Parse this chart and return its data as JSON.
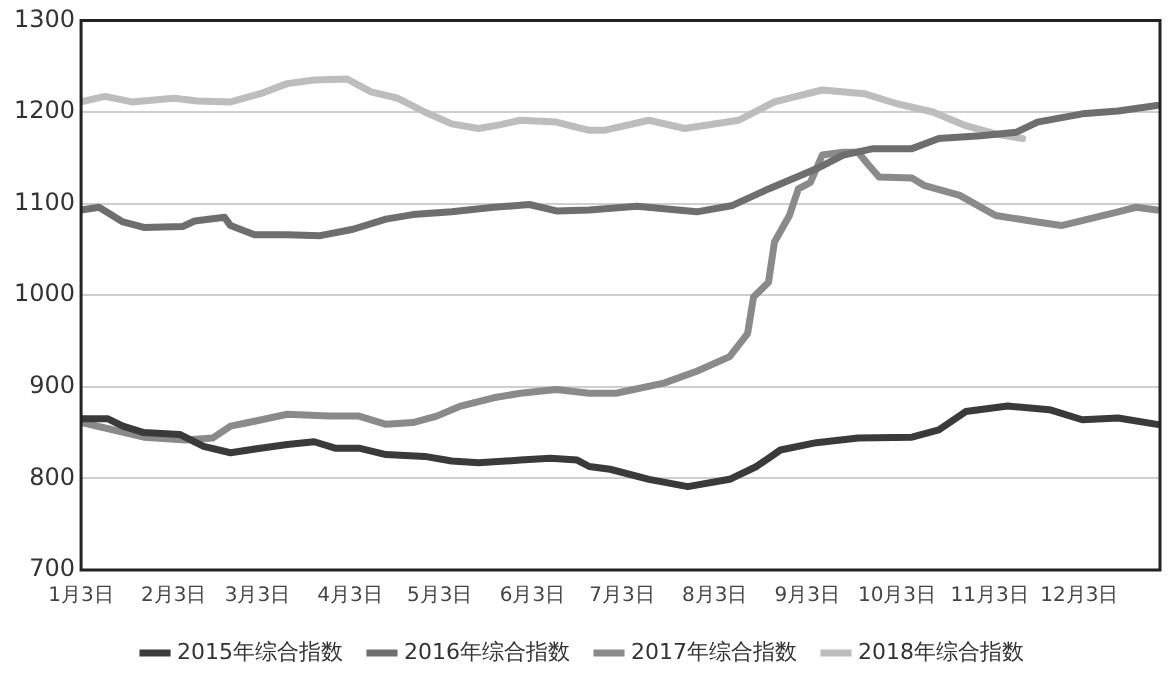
{
  "chart_data": {
    "type": "line",
    "xlim": [
      "--01-03",
      "--12-30"
    ],
    "ylim": [
      700,
      1300
    ],
    "xticks": [
      {
        "value": "--01-03",
        "label": "1月3日"
      },
      {
        "value": "--02-03",
        "label": "2月3日"
      },
      {
        "value": "--03-03",
        "label": "3月3日"
      },
      {
        "value": "--04-03",
        "label": "4月3日"
      },
      {
        "value": "--05-03",
        "label": "5月3日"
      },
      {
        "value": "--06-03",
        "label": "6月3日"
      },
      {
        "value": "--07-03",
        "label": "7月3日"
      },
      {
        "value": "--08-03",
        "label": "8月3日"
      },
      {
        "value": "--09-03",
        "label": "9月3日"
      },
      {
        "value": "--10-03",
        "label": "10月3日"
      },
      {
        "value": "--11-03",
        "label": "11月3日"
      },
      {
        "value": "--12-03",
        "label": "12月3日"
      }
    ],
    "yticks": [
      700,
      800,
      900,
      1000,
      1100,
      1200,
      1300
    ],
    "grid": "y",
    "legend": "bottom",
    "marker": "none",
    "line_style": "solid",
    "series": [
      {
        "name": "2015年综合指数",
        "color": "#3a3a3a",
        "x": [
          "--01-03",
          "--01-12",
          "--01-17",
          "--01-24",
          "--02-05",
          "--02-13",
          "--02-22",
          "--03-04",
          "--03-13",
          "--03-22",
          "--03-29",
          "--04-06",
          "--04-15",
          "--04-28",
          "--05-07",
          "--05-16",
          "--05-30",
          "--06-09",
          "--06-18",
          "--06-22",
          "--06-29",
          "--07-12",
          "--07-25",
          "--08-08",
          "--08-17",
          "--08-25",
          "--09-06",
          "--09-20",
          "--10-08",
          "--10-17",
          "--10-26",
          "--11-09",
          "--11-23",
          "--12-04",
          "--12-16",
          "--12-29"
        ],
        "values": [
          865,
          865,
          857,
          850,
          848,
          835,
          828,
          833,
          837,
          840,
          833,
          833,
          826,
          824,
          819,
          817,
          820,
          822,
          820,
          813,
          810,
          799,
          791,
          799,
          813,
          831,
          839,
          844,
          845,
          853,
          873,
          879,
          875,
          864,
          866,
          859
        ]
      },
      {
        "name": "2016年综合指数",
        "color": "#6e6e6e",
        "x": [
          "--01-03",
          "--01-09",
          "--01-17",
          "--01-24",
          "--02-06",
          "--02-10",
          "--02-20",
          "--02-22",
          "--03-02",
          "--03-13",
          "--03-24",
          "--04-04",
          "--04-15",
          "--04-24",
          "--05-07",
          "--05-21",
          "--06-02",
          "--06-11",
          "--06-22",
          "--07-08",
          "--07-28",
          "--08-09",
          "--08-21",
          "--09-06",
          "--09-15",
          "--09-25",
          "--10-08",
          "--10-17",
          "--10-31",
          "--11-12",
          "--11-19",
          "--12-04",
          "--12-16",
          "--12-29"
        ],
        "values": [
          1093,
          1096,
          1080,
          1074,
          1075,
          1081,
          1085,
          1076,
          1066,
          1066,
          1065,
          1072,
          1083,
          1088,
          1091,
          1096,
          1099,
          1092,
          1093,
          1097,
          1091,
          1098,
          1116,
          1138,
          1153,
          1160,
          1160,
          1171,
          1174,
          1178,
          1189,
          1198,
          1201,
          1207
        ]
      },
      {
        "name": "2017年综合指数",
        "color": "#8a8a8a",
        "x": [
          "--01-03",
          "--01-15",
          "--01-24",
          "--02-07",
          "--02-16",
          "--02-22",
          "--02-28",
          "--03-13",
          "--03-27",
          "--04-06",
          "--04-15",
          "--04-24",
          "--05-02",
          "--05-10",
          "--05-21",
          "--05-30",
          "--06-11",
          "--06-22",
          "--07-01",
          "--07-17",
          "--07-28",
          "--08-08",
          "--08-14",
          "--08-16",
          "--08-21",
          "--08-23",
          "--08-28",
          "--08-31",
          "--09-04",
          "--09-08",
          "--09-15",
          "--09-20",
          "--09-23",
          "--09-27",
          "--10-08",
          "--10-12",
          "--10-24",
          "--11-05",
          "--11-19",
          "--11-27",
          "--12-06",
          "--12-16",
          "--12-22",
          "--12-29"
        ],
        "values": [
          861,
          852,
          845,
          842,
          844,
          857,
          861,
          870,
          868,
          868,
          859,
          861,
          868,
          879,
          888,
          893,
          897,
          893,
          893,
          904,
          917,
          933,
          958,
          998,
          1014,
          1058,
          1087,
          1116,
          1123,
          1153,
          1156,
          1156,
          1144,
          1129,
          1128,
          1120,
          1109,
          1087,
          1080,
          1076,
          1083,
          1091,
          1096,
          1093
        ]
      },
      {
        "name": "2018年综合指数",
        "color": "#bdbdbd",
        "x": [
          "--01-03",
          "--01-11",
          "--01-20",
          "--02-03",
          "--02-11",
          "--02-22",
          "--03-04",
          "--03-13",
          "--03-22",
          "--04-02",
          "--04-10",
          "--04-19",
          "--04-28",
          "--05-07",
          "--05-16",
          "--05-23",
          "--05-30",
          "--06-11",
          "--06-22",
          "--06-27",
          "--07-12",
          "--07-24",
          "--08-11",
          "--08-23",
          "--09-08",
          "--09-22",
          "--10-03",
          "--10-15",
          "--10-26",
          "--11-05",
          "--11-14"
        ],
        "values": [
          1211,
          1217,
          1211,
          1215,
          1212,
          1211,
          1220,
          1231,
          1235,
          1236,
          1222,
          1215,
          1200,
          1187,
          1182,
          1186,
          1191,
          1189,
          1180,
          1180,
          1191,
          1182,
          1191,
          1211,
          1224,
          1220,
          1209,
          1200,
          1185,
          1176,
          1171
        ]
      }
    ]
  }
}
